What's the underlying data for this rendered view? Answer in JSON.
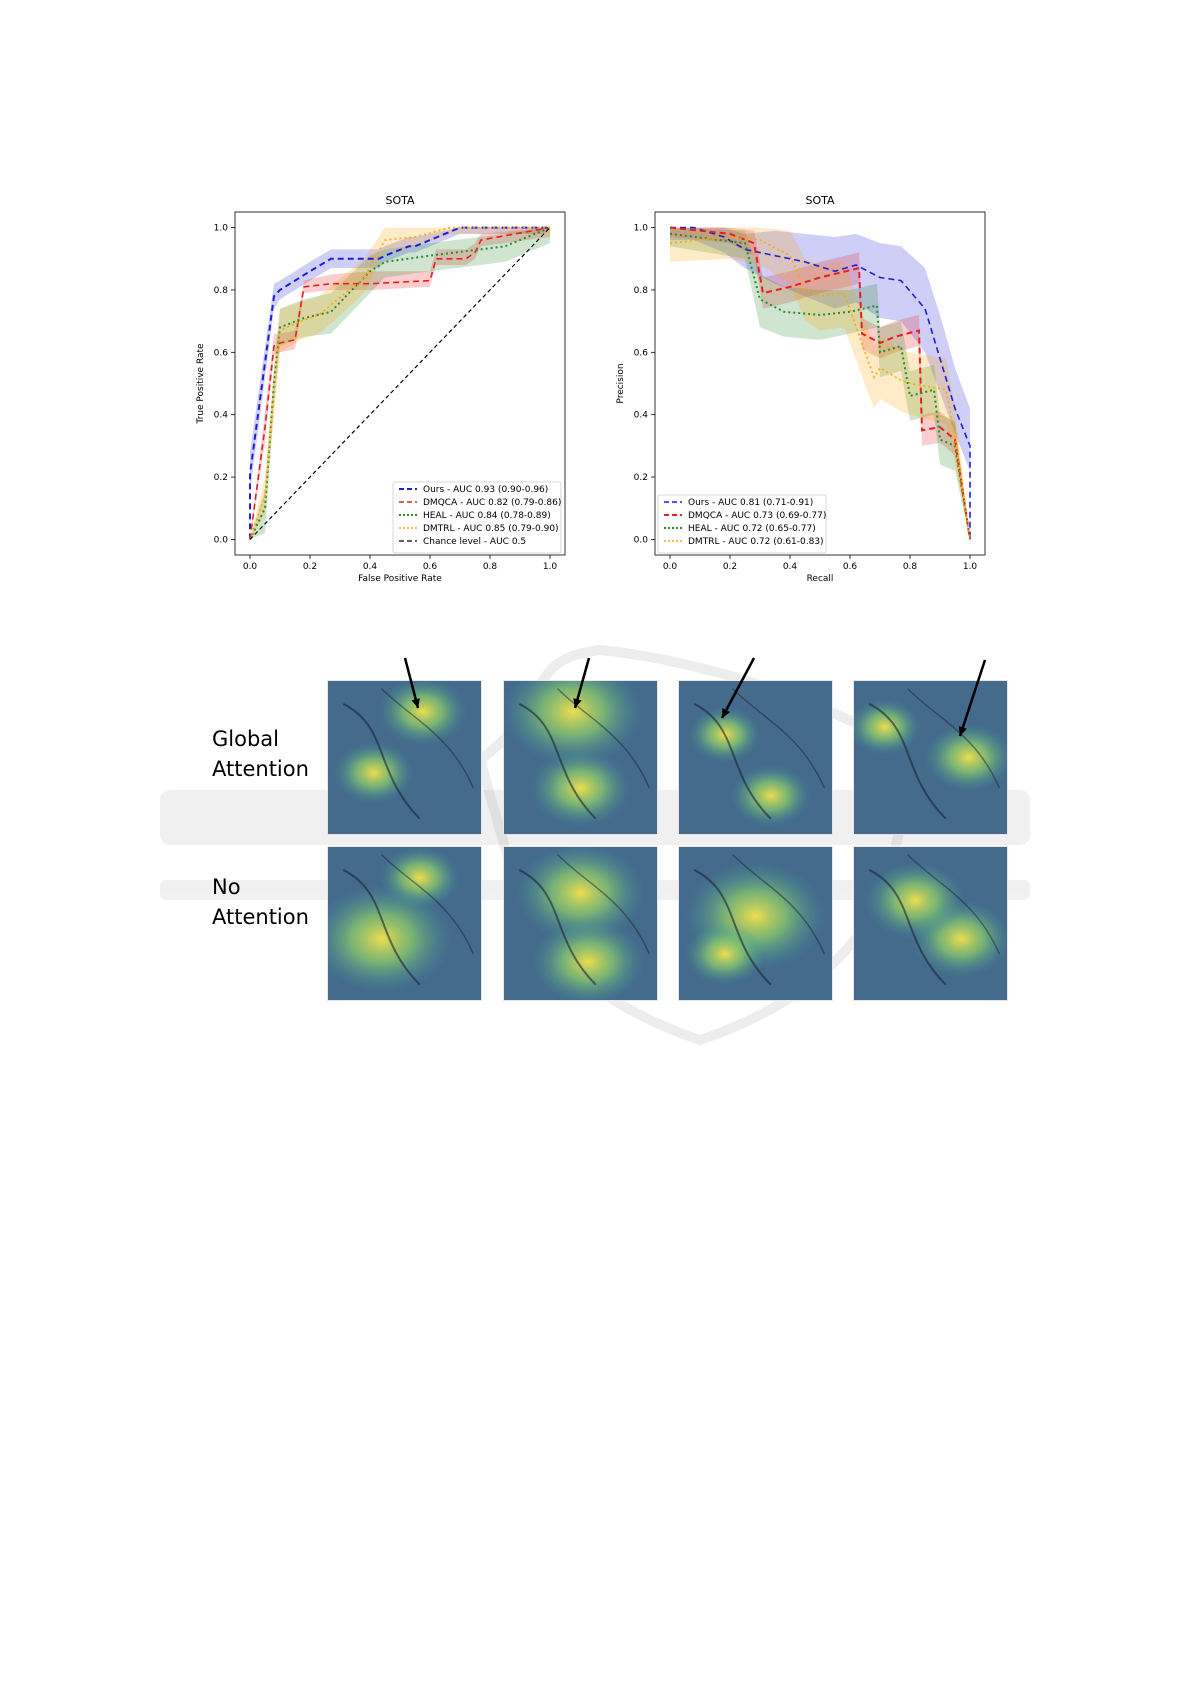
{
  "colors": {
    "ours": "#1f1fd6",
    "dmqca": "#e81f1f",
    "heal": "#2a8a2a",
    "dmtrl": "#ffa500",
    "chance": "#000000"
  },
  "figure": {
    "row_labels": {
      "global": [
        "Global",
        "Attention"
      ],
      "none": [
        "No",
        "Attention"
      ]
    },
    "heatmap_tiles": 8,
    "arrow_columns": 4
  },
  "chart_data": [
    {
      "type": "line",
      "title": "SOTA",
      "xlabel": "False Positive Rate",
      "ylabel": "True Positive Rate",
      "xlim": [
        -0.05,
        1.05
      ],
      "ylim": [
        -0.05,
        1.05
      ],
      "xticks": [
        "0.0",
        "0.2",
        "0.4",
        "0.6",
        "0.8",
        "1.0"
      ],
      "yticks": [
        "0.0",
        "0.2",
        "0.4",
        "0.6",
        "0.8",
        "1.0"
      ],
      "legend_position": "lower-right",
      "series": [
        {
          "name": "Ours - AUC 0.93 (0.90-0.96)",
          "color_key": "ours",
          "dash": "dash",
          "width": 2,
          "x": [
            0,
            0,
            0.08,
            0.1,
            0.2,
            0.27,
            0.43,
            0.45,
            0.53,
            0.55,
            0.7,
            0.98,
            1.0
          ],
          "y": [
            0,
            0.21,
            0.78,
            0.8,
            0.86,
            0.9,
            0.9,
            0.91,
            0.94,
            0.94,
            1.0,
            1.0,
            1.0
          ],
          "lo": [
            0,
            0.15,
            0.74,
            0.77,
            0.83,
            0.87,
            0.87,
            0.89,
            0.92,
            0.92,
            0.98,
            0.98,
            1.0
          ],
          "hi": [
            0,
            0.28,
            0.82,
            0.83,
            0.89,
            0.93,
            0.93,
            0.94,
            0.97,
            0.97,
            1.0,
            1.0,
            1.0
          ]
        },
        {
          "name": "DMQCA - AUC 0.82 (0.79-0.86)",
          "color_key": "dmqca",
          "dash": "dash",
          "width": 1.6,
          "x": [
            0,
            0.05,
            0.08,
            0.1,
            0.15,
            0.18,
            0.27,
            0.4,
            0.6,
            0.62,
            0.72,
            0.75,
            0.77,
            1.0
          ],
          "y": [
            0,
            0.36,
            0.62,
            0.63,
            0.64,
            0.81,
            0.82,
            0.82,
            0.83,
            0.9,
            0.9,
            0.92,
            0.96,
            1.0
          ],
          "lo": [
            0,
            0.31,
            0.59,
            0.6,
            0.61,
            0.79,
            0.8,
            0.8,
            0.81,
            0.88,
            0.88,
            0.9,
            0.94,
            0.97
          ],
          "hi": [
            0,
            0.41,
            0.66,
            0.66,
            0.67,
            0.83,
            0.85,
            0.86,
            0.86,
            0.93,
            0.93,
            0.95,
            0.98,
            1.0
          ]
        },
        {
          "name": "HEAL - AUC 0.84 (0.78-0.89)",
          "color_key": "heal",
          "dash": "dot",
          "width": 2,
          "x": [
            0,
            0.05,
            0.08,
            0.1,
            0.18,
            0.27,
            0.4,
            0.45,
            0.6,
            0.85,
            1.0
          ],
          "y": [
            0,
            0.1,
            0.5,
            0.68,
            0.71,
            0.73,
            0.86,
            0.89,
            0.91,
            0.94,
            1.0
          ],
          "lo": [
            0,
            0.02,
            0.44,
            0.62,
            0.65,
            0.66,
            0.79,
            0.84,
            0.86,
            0.89,
            0.95
          ],
          "hi": [
            0,
            0.16,
            0.56,
            0.74,
            0.77,
            0.79,
            0.91,
            0.93,
            0.95,
            0.98,
            1.0
          ]
        },
        {
          "name": "DMTRL - AUC 0.85 (0.79-0.90)",
          "color_key": "dmtrl",
          "dash": "dot",
          "width": 1.6,
          "x": [
            0,
            0.05,
            0.1,
            0.17,
            0.23,
            0.28,
            0.38,
            0.45,
            0.55,
            0.67,
            1.0
          ],
          "y": [
            0,
            0.14,
            0.67,
            0.7,
            0.72,
            0.76,
            0.84,
            0.96,
            0.97,
            1.0,
            1.0
          ],
          "lo": [
            0,
            0.08,
            0.6,
            0.64,
            0.66,
            0.7,
            0.79,
            0.92,
            0.94,
            0.98,
            0.98
          ],
          "hi": [
            0,
            0.2,
            0.74,
            0.76,
            0.78,
            0.82,
            0.9,
            1.0,
            1.0,
            1.0,
            1.0
          ]
        },
        {
          "name": "Chance level - AUC 0.5",
          "color_key": "chance",
          "dash": "dash",
          "width": 1.2,
          "x": [
            0,
            1
          ],
          "y": [
            0,
            1
          ]
        }
      ]
    },
    {
      "type": "line",
      "title": "SOTA",
      "xlabel": "Recall",
      "ylabel": "Precision",
      "xlim": [
        -0.05,
        1.05
      ],
      "ylim": [
        -0.05,
        1.05
      ],
      "xticks": [
        "0.0",
        "0.2",
        "0.4",
        "0.6",
        "0.8",
        "1.0"
      ],
      "yticks": [
        "0.0",
        "0.2",
        "0.4",
        "0.6",
        "0.8",
        "1.0"
      ],
      "legend_position": "lower-left",
      "series": [
        {
          "name": "Ours - AUC 0.81 (0.71-0.91)",
          "color_key": "ours",
          "dash": "dash",
          "width": 1.6,
          "x": [
            0,
            0.08,
            0.18,
            0.25,
            0.35,
            0.45,
            0.55,
            0.62,
            0.7,
            0.77,
            0.85,
            0.9,
            0.95,
            1.0,
            1.0
          ],
          "y": [
            1.0,
            1.0,
            0.97,
            0.93,
            0.91,
            0.89,
            0.86,
            0.88,
            0.84,
            0.83,
            0.74,
            0.58,
            0.42,
            0.3,
            0.0
          ],
          "lo": [
            0.96,
            0.96,
            0.92,
            0.87,
            0.82,
            0.78,
            0.74,
            0.76,
            0.71,
            0.7,
            0.6,
            0.47,
            0.34,
            0.22,
            0.0
          ],
          "hi": [
            1.0,
            1.0,
            1.0,
            0.98,
            0.99,
            0.98,
            0.97,
            0.98,
            0.95,
            0.94,
            0.87,
            0.72,
            0.55,
            0.42,
            0.0
          ]
        },
        {
          "name": "DMQCA - AUC 0.73 (0.69-0.77)",
          "color_key": "dmqca",
          "dash": "dash",
          "width": 2,
          "x": [
            0,
            0.2,
            0.28,
            0.31,
            0.4,
            0.5,
            0.63,
            0.64,
            0.7,
            0.75,
            0.83,
            0.84,
            0.9,
            0.95,
            1.0
          ],
          "y": [
            1.0,
            0.98,
            0.95,
            0.79,
            0.81,
            0.84,
            0.87,
            0.66,
            0.63,
            0.65,
            0.67,
            0.35,
            0.36,
            0.32,
            0.0
          ],
          "lo": [
            0.97,
            0.95,
            0.91,
            0.74,
            0.76,
            0.79,
            0.82,
            0.61,
            0.58,
            0.6,
            0.62,
            0.3,
            0.31,
            0.27,
            0.0
          ],
          "hi": [
            1.0,
            1.0,
            0.99,
            0.84,
            0.86,
            0.89,
            0.92,
            0.71,
            0.68,
            0.7,
            0.72,
            0.4,
            0.41,
            0.37,
            0.0
          ]
        },
        {
          "name": "HEAL - AUC 0.72 (0.65-0.77)",
          "color_key": "heal",
          "dash": "dot",
          "width": 2,
          "x": [
            0,
            0.25,
            0.3,
            0.38,
            0.5,
            0.6,
            0.69,
            0.7,
            0.77,
            0.8,
            0.88,
            0.9,
            0.95,
            1.0
          ],
          "y": [
            0.98,
            0.95,
            0.77,
            0.73,
            0.72,
            0.73,
            0.75,
            0.6,
            0.62,
            0.46,
            0.48,
            0.32,
            0.3,
            0.0
          ],
          "lo": [
            0.94,
            0.9,
            0.68,
            0.65,
            0.64,
            0.66,
            0.68,
            0.52,
            0.54,
            0.38,
            0.4,
            0.24,
            0.22,
            0.0
          ],
          "hi": [
            1.0,
            0.99,
            0.85,
            0.81,
            0.8,
            0.8,
            0.82,
            0.68,
            0.7,
            0.54,
            0.56,
            0.4,
            0.38,
            0.0
          ]
        },
        {
          "name": "DMTRL - AUC 0.72 (0.61-0.83)",
          "color_key": "dmtrl",
          "dash": "dot",
          "width": 1.6,
          "x": [
            0,
            0.2,
            0.3,
            0.4,
            0.45,
            0.5,
            0.58,
            0.68,
            0.7,
            0.77,
            0.8,
            0.92,
            0.95,
            1.0
          ],
          "y": [
            0.95,
            0.97,
            0.96,
            0.91,
            0.8,
            0.78,
            0.79,
            0.52,
            0.55,
            0.51,
            0.5,
            0.48,
            0.33,
            0.0
          ],
          "lo": [
            0.89,
            0.9,
            0.88,
            0.82,
            0.7,
            0.67,
            0.68,
            0.42,
            0.45,
            0.41,
            0.4,
            0.37,
            0.24,
            0.0
          ],
          "hi": [
            1.0,
            1.0,
            1.0,
            0.99,
            0.9,
            0.88,
            0.89,
            0.62,
            0.65,
            0.61,
            0.6,
            0.58,
            0.43,
            0.0
          ]
        }
      ]
    }
  ]
}
